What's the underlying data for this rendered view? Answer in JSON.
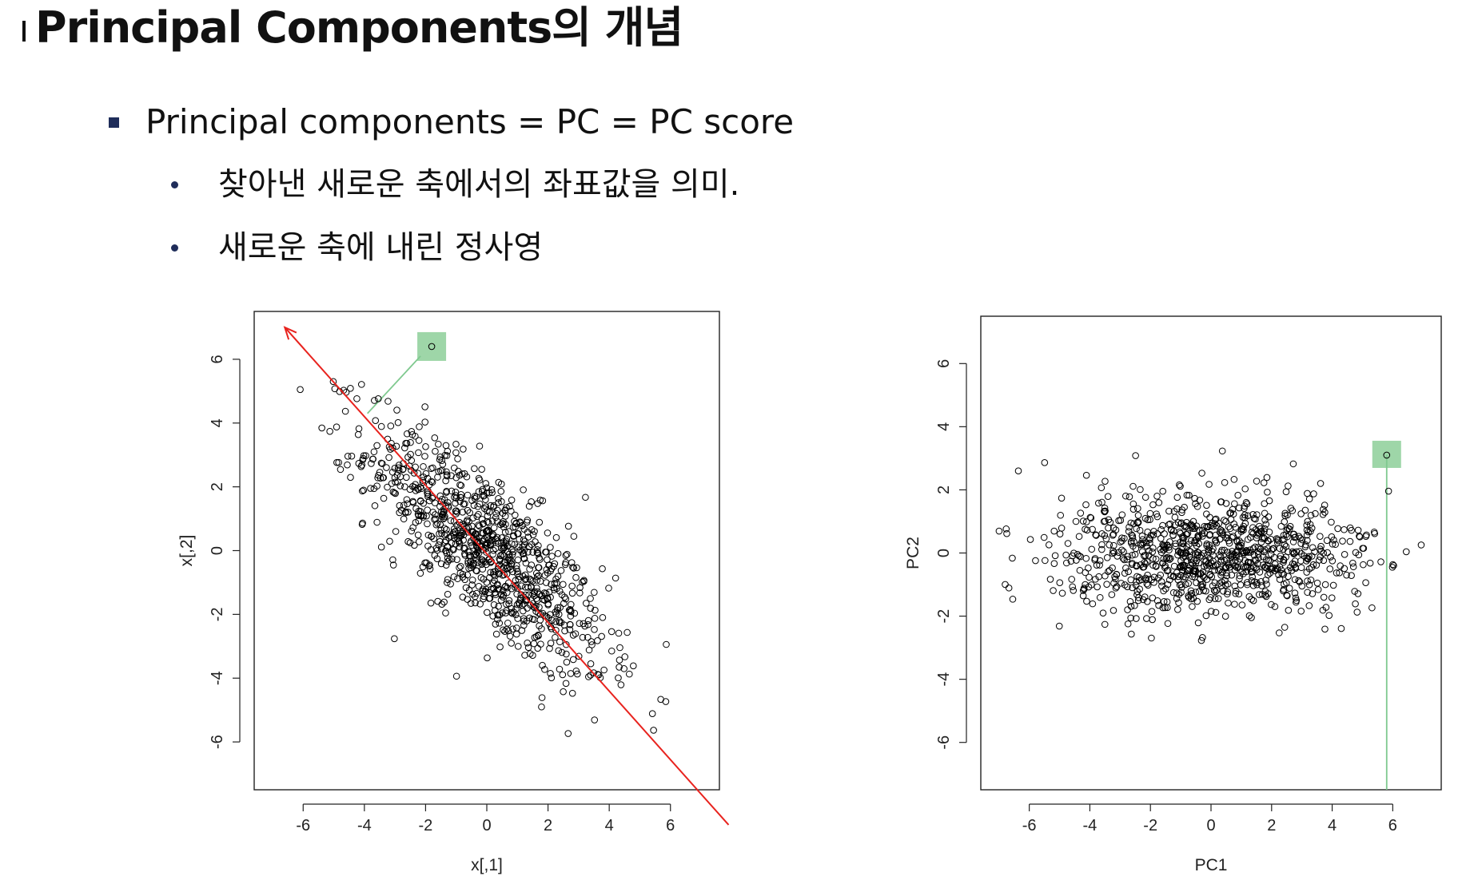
{
  "page": {
    "title": "Principal Components의 개념",
    "bullets": [
      {
        "text": "Principal components = PC = PC score",
        "children": [
          {
            "text": "찾아낸 새로운 축에서의 좌표값을 의미."
          },
          {
            "text": "새로운 축에 내린 정사영"
          }
        ]
      }
    ]
  },
  "chart_data": [
    {
      "type": "scatter",
      "title": "",
      "xlabel": "x[,1]",
      "ylabel": "x[,2]",
      "xlim": [
        -7.6,
        7.6
      ],
      "ylim": [
        -7.5,
        7.5
      ],
      "xticks": [
        -6,
        -4,
        -2,
        0,
        2,
        4,
        6
      ],
      "yticks": [
        -6,
        -4,
        -2,
        0,
        2,
        4,
        6
      ],
      "marker": "open-circle",
      "n_points": 1000,
      "correlation": -0.78,
      "x_sd": 1.95,
      "y_sd": 1.95,
      "highlighted_point": {
        "x": -1.8,
        "y": 6.4
      },
      "projection_foot": {
        "x": -3.9,
        "y": 4.3
      },
      "pc1_axis_arrow": {
        "from": [
          7.9,
          -8.6
        ],
        "to": [
          -6.6,
          7.0
        ]
      },
      "colors": {
        "points": "#000000",
        "axis_arrow": "#e8231e",
        "projection": "#7fc98f",
        "highlight_box": "#9ed6a8"
      }
    },
    {
      "type": "scatter",
      "title": "",
      "xlabel": "PC1",
      "ylabel": "PC2",
      "xlim": [
        -7.6,
        7.6
      ],
      "ylim": [
        -7.5,
        7.5
      ],
      "xticks": [
        -6,
        -4,
        -2,
        0,
        2,
        4,
        6
      ],
      "yticks": [
        -6,
        -4,
        -2,
        0,
        2,
        4,
        6
      ],
      "marker": "open-circle",
      "n_points": 1000,
      "pc1_sd": 2.55,
      "pc2_sd": 0.95,
      "highlighted_point": {
        "x": 5.8,
        "y": 3.1
      },
      "projection_foot": {
        "x": 5.8,
        "y": -7.5
      },
      "colors": {
        "points": "#000000",
        "projection": "#7fc98f",
        "highlight_box": "#9ed6a8"
      }
    }
  ]
}
